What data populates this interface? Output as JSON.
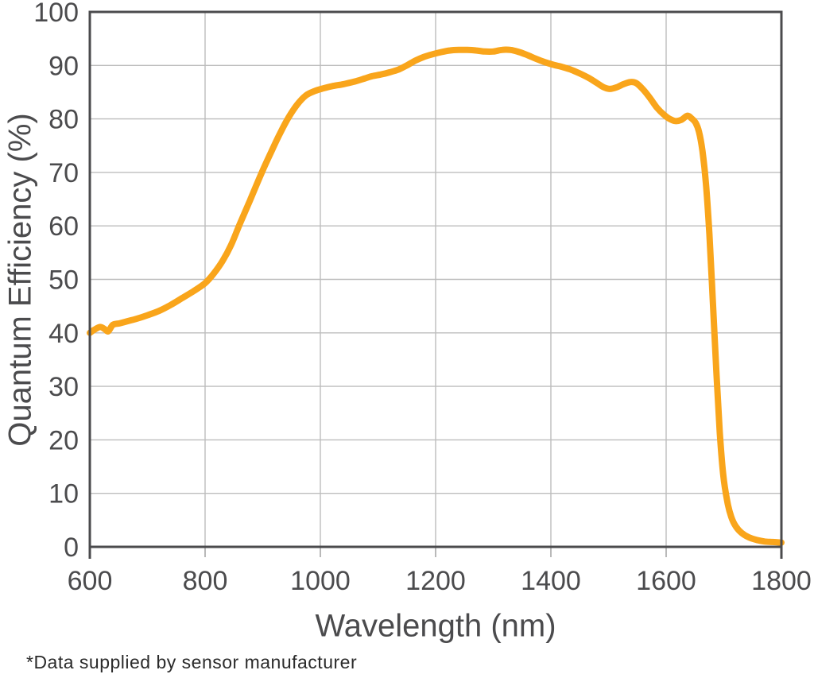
{
  "figure": {
    "footnote": "*Data supplied by sensor manufacturer"
  },
  "chart_data": {
    "type": "line",
    "title": "",
    "xlabel": "Wavelength (nm)",
    "ylabel": "Quantum Efficiency (%)",
    "xlim": [
      600,
      1800
    ],
    "ylim": [
      0,
      100
    ],
    "x_ticks": [
      600,
      800,
      1000,
      1200,
      1400,
      1600,
      1800
    ],
    "y_ticks": [
      0,
      10,
      20,
      30,
      40,
      50,
      60,
      70,
      80,
      90,
      100
    ],
    "grid": true,
    "legend_position": "none",
    "colors": {
      "line": "#F9A51B",
      "axis": "#4B4B4D",
      "grid": "#BDBDBD",
      "tick": "#9B9B9B",
      "tick_text": "#4B4B4D",
      "footnote_text": "#2B2B2B"
    },
    "series": [
      {
        "name": "Quantum efficiency",
        "points": [
          [
            600,
            40.0
          ],
          [
            608,
            40.6
          ],
          [
            618,
            41.1
          ],
          [
            626,
            40.7
          ],
          [
            632,
            40.3
          ],
          [
            640,
            41.5
          ],
          [
            652,
            41.8
          ],
          [
            666,
            42.2
          ],
          [
            680,
            42.6
          ],
          [
            700,
            43.3
          ],
          [
            720,
            44.1
          ],
          [
            740,
            45.2
          ],
          [
            760,
            46.5
          ],
          [
            780,
            47.8
          ],
          [
            800,
            49.3
          ],
          [
            815,
            51.1
          ],
          [
            830,
            53.4
          ],
          [
            845,
            56.4
          ],
          [
            860,
            60.3
          ],
          [
            878,
            64.8
          ],
          [
            898,
            69.9
          ],
          [
            915,
            73.9
          ],
          [
            930,
            77.3
          ],
          [
            945,
            80.3
          ],
          [
            960,
            82.7
          ],
          [
            975,
            84.4
          ],
          [
            990,
            85.2
          ],
          [
            1005,
            85.7
          ],
          [
            1020,
            86.1
          ],
          [
            1040,
            86.5
          ],
          [
            1060,
            87.0
          ],
          [
            1078,
            87.6
          ],
          [
            1090,
            88.0
          ],
          [
            1105,
            88.3
          ],
          [
            1120,
            88.7
          ],
          [
            1135,
            89.2
          ],
          [
            1150,
            90.0
          ],
          [
            1165,
            90.9
          ],
          [
            1180,
            91.6
          ],
          [
            1195,
            92.1
          ],
          [
            1210,
            92.5
          ],
          [
            1225,
            92.8
          ],
          [
            1240,
            92.9
          ],
          [
            1255,
            92.9
          ],
          [
            1270,
            92.8
          ],
          [
            1285,
            92.6
          ],
          [
            1300,
            92.6
          ],
          [
            1315,
            92.9
          ],
          [
            1330,
            92.9
          ],
          [
            1345,
            92.5
          ],
          [
            1360,
            91.9
          ],
          [
            1375,
            91.2
          ],
          [
            1390,
            90.6
          ],
          [
            1405,
            90.1
          ],
          [
            1420,
            89.7
          ],
          [
            1435,
            89.2
          ],
          [
            1450,
            88.5
          ],
          [
            1465,
            87.7
          ],
          [
            1480,
            86.7
          ],
          [
            1492,
            85.9
          ],
          [
            1502,
            85.6
          ],
          [
            1514,
            85.9
          ],
          [
            1526,
            86.5
          ],
          [
            1538,
            86.9
          ],
          [
            1548,
            86.7
          ],
          [
            1560,
            85.5
          ],
          [
            1572,
            83.9
          ],
          [
            1584,
            82.1
          ],
          [
            1596,
            80.8
          ],
          [
            1606,
            80.0
          ],
          [
            1616,
            79.6
          ],
          [
            1626,
            79.8
          ],
          [
            1637,
            80.6
          ],
          [
            1644,
            80.1
          ],
          [
            1651,
            79.3
          ],
          [
            1657,
            77.6
          ],
          [
            1663,
            74.0
          ],
          [
            1669,
            68.0
          ],
          [
            1675,
            58.5
          ],
          [
            1681,
            46.0
          ],
          [
            1687,
            33.0
          ],
          [
            1693,
            21.5
          ],
          [
            1699,
            13.5
          ],
          [
            1706,
            8.5
          ],
          [
            1713,
            5.6
          ],
          [
            1721,
            3.8
          ],
          [
            1731,
            2.6
          ],
          [
            1743,
            1.8
          ],
          [
            1757,
            1.3
          ],
          [
            1771,
            1.0
          ],
          [
            1785,
            0.9
          ],
          [
            1800,
            0.8
          ]
        ]
      }
    ]
  }
}
